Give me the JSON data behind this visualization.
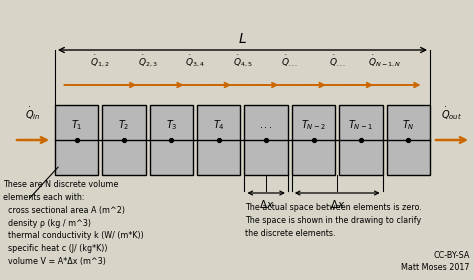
{
  "bg_color": "#d8d5c8",
  "box_color": "#b8b8b8",
  "box_edge": "#000000",
  "arrow_color": "#cc6600",
  "text_color": "#000000",
  "note_left": "These are N discrete volume\nelements each with:\n  cross sectional area A (m^2)\n  density ρ (kg / m^3)\n  thermal conductivity k (W/ (m*K))\n  specific heat c (J/ (kg*K))\n  volume V = A*Δx (m^3)",
  "note_right": "The actual space between elements is zero.\nThe space is shown in the drawing to clarify\nthe discrete elements.",
  "credit": "CC-BY-SA\nMatt Moses 2017"
}
